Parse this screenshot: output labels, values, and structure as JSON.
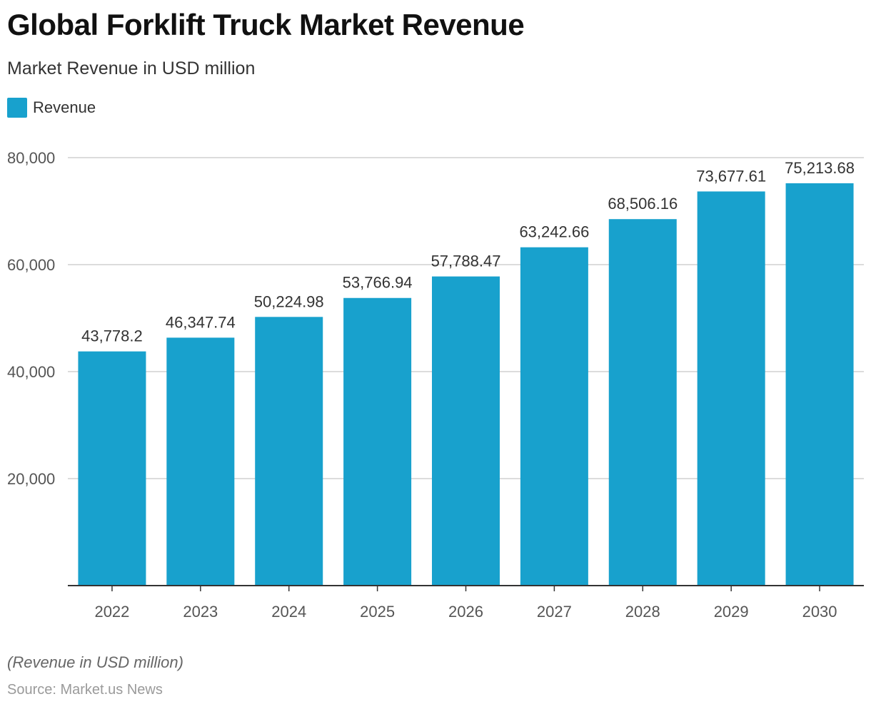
{
  "header": {
    "title": "Global Forklift Truck Market Revenue",
    "subtitle": "Market Revenue in USD million"
  },
  "legend": {
    "label": "Revenue",
    "color": "#18a1cd"
  },
  "footer": {
    "note": "(Revenue in USD million)",
    "source": "Source: Market.us News"
  },
  "chart_data": {
    "type": "bar",
    "categories": [
      "2022",
      "2023",
      "2024",
      "2025",
      "2026",
      "2027",
      "2028",
      "2029",
      "2030"
    ],
    "series": [
      {
        "name": "Revenue",
        "color": "#18a1cd",
        "values": [
          43778.2,
          46347.74,
          50224.98,
          53766.94,
          57788.47,
          63242.66,
          68506.16,
          73677.61,
          75213.68
        ],
        "labels": [
          "43,778.2",
          "46,347.74",
          "50,224.98",
          "53,766.94",
          "57,788.47",
          "63,242.66",
          "68,506.16",
          "73,677.61",
          "75,213.68"
        ]
      }
    ],
    "title": "Global Forklift Truck Market Revenue",
    "ylabel": "",
    "xlabel": "",
    "ylim": [
      0,
      80000
    ],
    "yticks": [
      20000,
      40000,
      60000,
      80000
    ],
    "ytick_labels": [
      "20,000",
      "40,000",
      "60,000",
      "80,000"
    ],
    "grid": true,
    "legend_position": "top-left"
  }
}
